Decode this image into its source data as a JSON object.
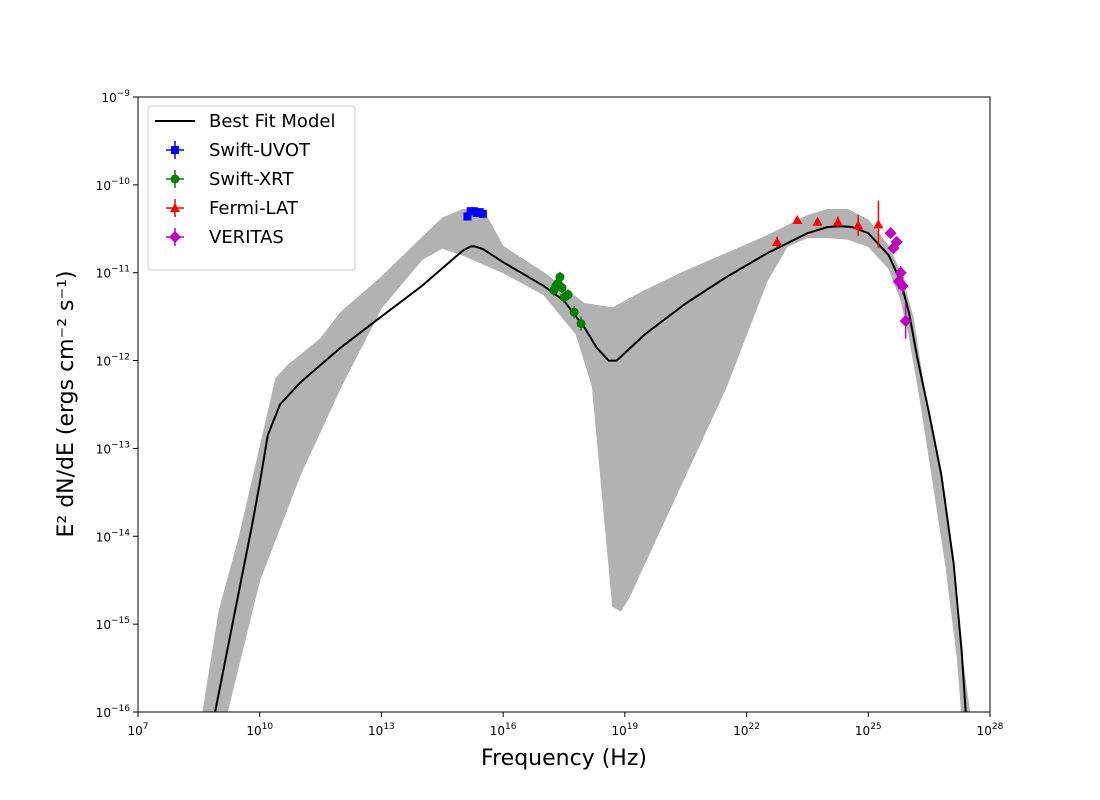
{
  "chart_data": {
    "type": "scatter",
    "xlabel": "Frequency (Hz)",
    "ylabel": "E² dN/dE (ergs cm⁻² s⁻¹)",
    "xscale": "log",
    "yscale": "log",
    "xlim": [
      10000000.0,
      1e+28
    ],
    "ylim": [
      1e-16,
      1e-09
    ],
    "x_ticks": [
      {
        "base": "10",
        "exp": "7"
      },
      {
        "base": "10",
        "exp": "10"
      },
      {
        "base": "10",
        "exp": "13"
      },
      {
        "base": "10",
        "exp": "16"
      },
      {
        "base": "10",
        "exp": "19"
      },
      {
        "base": "10",
        "exp": "22"
      },
      {
        "base": "10",
        "exp": "25"
      },
      {
        "base": "10",
        "exp": "28"
      }
    ],
    "y_ticks": [
      {
        "base": "10",
        "exp": "−16"
      },
      {
        "base": "10",
        "exp": "−15"
      },
      {
        "base": "10",
        "exp": "−14"
      },
      {
        "base": "10",
        "exp": "−13"
      },
      {
        "base": "10",
        "exp": "−12"
      },
      {
        "base": "10",
        "exp": "−11"
      },
      {
        "base": "10",
        "exp": "−10"
      },
      {
        "base": "10",
        "exp": "−9"
      }
    ],
    "grid": false,
    "legend_position": "top-left",
    "band_color": "#b2b2b2",
    "best_fit_model": {
      "name": "Best Fit Model",
      "color": "#000000",
      "points": [
        [
          8.9,
          -16.0
        ],
        [
          9.5,
          -14.6
        ],
        [
          9.8,
          -13.9
        ],
        [
          10.0,
          -13.4
        ],
        [
          10.2,
          -12.85
        ],
        [
          10.5,
          -12.5
        ],
        [
          11.0,
          -12.25
        ],
        [
          12.0,
          -11.85
        ],
        [
          13.0,
          -11.5
        ],
        [
          14.0,
          -11.15
        ],
        [
          14.5,
          -10.95
        ],
        [
          15.0,
          -10.75
        ],
        [
          15.2,
          -10.7
        ],
        [
          15.3,
          -10.7
        ],
        [
          15.5,
          -10.73
        ],
        [
          16.0,
          -10.88
        ],
        [
          17.0,
          -11.15
        ],
        [
          17.5,
          -11.32
        ],
        [
          18.0,
          -11.62
        ],
        [
          18.3,
          -11.85
        ],
        [
          18.6,
          -12.0
        ],
        [
          18.8,
          -12.0
        ],
        [
          19.5,
          -11.7
        ],
        [
          20.5,
          -11.35
        ],
        [
          21.5,
          -11.05
        ],
        [
          22.5,
          -10.78
        ],
        [
          23.5,
          -10.55
        ],
        [
          24.0,
          -10.48
        ],
        [
          24.3,
          -10.47
        ],
        [
          24.6,
          -10.48
        ],
        [
          25.0,
          -10.55
        ],
        [
          25.5,
          -10.8
        ],
        [
          25.8,
          -11.1
        ],
        [
          26.0,
          -11.45
        ],
        [
          26.2,
          -11.95
        ],
        [
          26.5,
          -12.6
        ],
        [
          26.8,
          -13.3
        ],
        [
          27.1,
          -14.3
        ],
        [
          27.3,
          -15.3
        ],
        [
          27.4,
          -16.0
        ]
      ]
    },
    "band_upper": [
      [
        8.6,
        -16.0
      ],
      [
        9.0,
        -14.85
      ],
      [
        9.5,
        -14.0
      ],
      [
        9.9,
        -13.2
      ],
      [
        10.2,
        -12.6
      ],
      [
        10.4,
        -12.2
      ],
      [
        10.7,
        -12.05
      ],
      [
        11.5,
        -11.75
      ],
      [
        12.0,
        -11.45
      ],
      [
        13.0,
        -11.05
      ],
      [
        14.0,
        -10.6
      ],
      [
        14.5,
        -10.38
      ],
      [
        15.0,
        -10.28
      ],
      [
        15.5,
        -10.28
      ],
      [
        16.0,
        -10.7
      ],
      [
        17.0,
        -11.0
      ],
      [
        18.0,
        -11.35
      ],
      [
        18.7,
        -11.4
      ],
      [
        19.5,
        -11.2
      ],
      [
        20.5,
        -10.98
      ],
      [
        21.5,
        -10.78
      ],
      [
        22.5,
        -10.58
      ],
      [
        23.5,
        -10.35
      ],
      [
        24.0,
        -10.28
      ],
      [
        24.5,
        -10.28
      ],
      [
        25.0,
        -10.4
      ],
      [
        25.5,
        -10.7
      ],
      [
        25.8,
        -11.0
      ],
      [
        26.1,
        -11.5
      ],
      [
        26.4,
        -12.4
      ],
      [
        26.7,
        -13.1
      ],
      [
        27.0,
        -14.0
      ],
      [
        27.2,
        -15.0
      ],
      [
        27.5,
        -16.0
      ]
    ],
    "band_lower": [
      [
        8.6,
        -16.0
      ],
      [
        9.2,
        -16.0
      ],
      [
        10.0,
        -14.5
      ],
      [
        11.0,
        -13.3
      ],
      [
        12.0,
        -12.3
      ],
      [
        13.0,
        -11.4
      ],
      [
        14.0,
        -10.85
      ],
      [
        14.5,
        -10.72
      ],
      [
        15.0,
        -10.8
      ],
      [
        16.0,
        -11.0
      ],
      [
        17.0,
        -11.25
      ],
      [
        17.8,
        -11.7
      ],
      [
        18.2,
        -12.3
      ],
      [
        18.7,
        -14.8
      ],
      [
        18.9,
        -14.85
      ],
      [
        19.1,
        -14.7
      ],
      [
        19.5,
        -14.3
      ],
      [
        20.5,
        -13.3
      ],
      [
        21.5,
        -12.3
      ],
      [
        22.5,
        -11.1
      ],
      [
        23.0,
        -10.7
      ],
      [
        23.5,
        -10.6
      ],
      [
        24.0,
        -10.6
      ],
      [
        24.5,
        -10.62
      ],
      [
        25.0,
        -10.7
      ],
      [
        25.5,
        -10.95
      ],
      [
        25.8,
        -11.3
      ],
      [
        26.0,
        -11.7
      ],
      [
        26.3,
        -12.5
      ],
      [
        26.6,
        -13.4
      ],
      [
        26.9,
        -14.3
      ],
      [
        27.2,
        -15.4
      ],
      [
        27.3,
        -16.0
      ]
    ],
    "series": [
      {
        "name": "Swift-UVOT",
        "color": "#0000ff",
        "marker": "square",
        "points": [
          {
            "x": 15.12,
            "y": -10.36,
            "err": 0.03
          },
          {
            "x": 15.2,
            "y": -10.3,
            "err": 0.03
          },
          {
            "x": 15.28,
            "y": -10.3,
            "err": 0.03
          },
          {
            "x": 15.35,
            "y": -10.32,
            "err": 0.03
          },
          {
            "x": 15.42,
            "y": -10.31,
            "err": 0.03
          },
          {
            "x": 15.5,
            "y": -10.33,
            "err": 0.03
          }
        ]
      },
      {
        "name": "Swift-XRT",
        "color": "#008000",
        "marker": "circle",
        "points": [
          {
            "x": 17.25,
            "y": -11.2,
            "err": 0.06
          },
          {
            "x": 17.3,
            "y": -11.15,
            "err": 0.06
          },
          {
            "x": 17.35,
            "y": -11.12,
            "err": 0.06
          },
          {
            "x": 17.4,
            "y": -11.05,
            "err": 0.06
          },
          {
            "x": 17.45,
            "y": -11.17,
            "err": 0.06
          },
          {
            "x": 17.5,
            "y": -11.28,
            "err": 0.06
          },
          {
            "x": 17.6,
            "y": -11.25,
            "err": 0.06
          },
          {
            "x": 17.75,
            "y": -11.45,
            "err": 0.07
          },
          {
            "x": 17.92,
            "y": -11.58,
            "err": 0.08
          }
        ]
      },
      {
        "name": "Fermi-LAT",
        "color": "#ff0000",
        "marker": "triangle",
        "points": [
          {
            "x": 22.75,
            "y": -10.65,
            "err": 0.06
          },
          {
            "x": 23.25,
            "y": -10.4,
            "err": 0.04
          },
          {
            "x": 23.75,
            "y": -10.42,
            "err": 0.04
          },
          {
            "x": 24.25,
            "y": -10.42,
            "err": 0.06
          },
          {
            "x": 24.75,
            "y": -10.46,
            "err": 0.12
          },
          {
            "x": 25.25,
            "y": -10.45,
            "err": 0.27
          }
        ]
      },
      {
        "name": "VERITAS",
        "color": "#bf00bf",
        "marker": "diamond",
        "points": [
          {
            "x": 25.55,
            "y": -10.55,
            "err": 0.04
          },
          {
            "x": 25.62,
            "y": -10.72,
            "err": 0.05
          },
          {
            "x": 25.7,
            "y": -10.65,
            "err": 0.05
          },
          {
            "x": 25.75,
            "y": -11.1,
            "err": 0.09
          },
          {
            "x": 25.8,
            "y": -11.0,
            "err": 0.08
          },
          {
            "x": 25.85,
            "y": -11.15,
            "err": 0.1
          },
          {
            "x": 25.92,
            "y": -11.55,
            "err": 0.2
          }
        ]
      }
    ],
    "legend": [
      {
        "label": "Best Fit Model",
        "kind": "line",
        "color": "#000000"
      },
      {
        "label": "Swift-UVOT",
        "kind": "square",
        "color": "#0000ff"
      },
      {
        "label": "Swift-XRT",
        "kind": "circle",
        "color": "#008000"
      },
      {
        "label": "Fermi-LAT",
        "kind": "triangle",
        "color": "#ff0000"
      },
      {
        "label": "VERITAS",
        "kind": "diamond",
        "color": "#bf00bf"
      }
    ]
  }
}
